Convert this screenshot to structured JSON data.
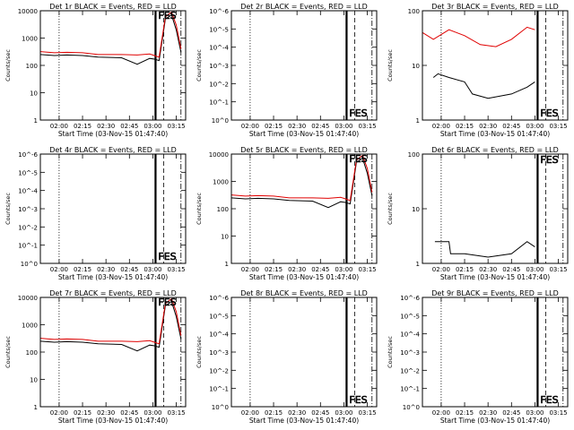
{
  "colors": {
    "events": "#000000",
    "lld": "#e00000",
    "axis": "#000000"
  },
  "chart_data": [
    {
      "type": "line",
      "title": "Det 1r BLACK = Events, RED = LLD",
      "ylabel": "Counts/sec",
      "xlabel": "Start Time (03-Nov-15 01:47:40)",
      "yscale": "log",
      "yticks": [
        "1",
        "10",
        "100",
        "1000",
        "10000"
      ],
      "ylim": [
        1,
        10000
      ],
      "xticks": [
        "02:00",
        "02:15",
        "02:30",
        "02:45",
        "03:00",
        "03:15"
      ],
      "annotations": [
        "FES"
      ],
      "has_data": true,
      "series": [
        {
          "name": "Events",
          "x": [
            "01:48",
            "01:57",
            "02:05",
            "02:15",
            "02:25",
            "02:40",
            "02:50",
            "02:58",
            "03:01",
            "03:04",
            "03:08",
            "03:12",
            "03:15",
            "03:18"
          ],
          "y": [
            250,
            230,
            240,
            230,
            200,
            190,
            110,
            180,
            170,
            150,
            5000,
            7000,
            2000,
            300
          ]
        },
        {
          "name": "LLD",
          "x": [
            "01:48",
            "01:57",
            "02:05",
            "02:15",
            "02:25",
            "02:40",
            "02:50",
            "02:58",
            "03:01",
            "03:04",
            "03:08",
            "03:12",
            "03:15",
            "03:18"
          ],
          "y": [
            320,
            290,
            300,
            290,
            250,
            250,
            240,
            260,
            230,
            200,
            6000,
            9000,
            3000,
            400
          ]
        }
      ]
    },
    {
      "type": "line",
      "title": "Det 2r BLACK = Events, RED = LLD",
      "ylabel": "Counts/sec",
      "xlabel": "Start Time (03-Nov-15 01:47:40)",
      "yscale": "log",
      "yticks": [
        "10^0",
        "10^-1",
        "10^-2",
        "10^-3",
        "10^-4",
        "10^-5",
        "10^-6"
      ],
      "ylim": [
        1,
        1e-06
      ],
      "xticks": [
        "02:00",
        "02:15",
        "02:30",
        "02:45",
        "03:00",
        "03:15"
      ],
      "annotations": [
        "FES"
      ],
      "has_data": false
    },
    {
      "type": "line",
      "title": "Det 3r BLACK = Events, RED = LLD",
      "ylabel": "Counts/sec",
      "xlabel": "Start Time (03-Nov-15 01:47:40)",
      "yscale": "log",
      "yticks": [
        "1",
        "10",
        "100"
      ],
      "ylim": [
        1,
        100
      ],
      "xticks": [
        "02:00",
        "02:15",
        "02:30",
        "02:45",
        "03:00",
        "03:15"
      ],
      "annotations": [
        "FES"
      ],
      "has_data": true,
      "series": [
        {
          "name": "Events",
          "x": [
            "01:55",
            "01:58",
            "02:05",
            "02:15",
            "02:20",
            "02:30",
            "02:45",
            "02:55",
            "03:00"
          ],
          "y": [
            6,
            7,
            6,
            5,
            3,
            2.5,
            3,
            4,
            5
          ]
        },
        {
          "name": "LLD",
          "x": [
            "01:48",
            "01:55",
            "02:05",
            "02:15",
            "02:25",
            "02:35",
            "02:45",
            "02:55",
            "03:00"
          ],
          "y": [
            40,
            30,
            45,
            35,
            24,
            22,
            30,
            50,
            45
          ]
        }
      ]
    },
    {
      "type": "line",
      "title": "Det 4r BLACK = Events, RED = LLD",
      "ylabel": "Counts/sec",
      "xlabel": "Start Time (03-Nov-15 01:47:40)",
      "yscale": "log",
      "yticks": [
        "10^0",
        "10^-1",
        "10^-2",
        "10^-3",
        "10^-4",
        "10^-5",
        "10^-6"
      ],
      "ylim": [
        1,
        1e-06
      ],
      "xticks": [
        "02:00",
        "02:15",
        "02:30",
        "02:45",
        "03:00",
        "03:15"
      ],
      "annotations": [
        "FES"
      ],
      "has_data": false
    },
    {
      "type": "line",
      "title": "Det 5r BLACK = Events, RED = LLD",
      "ylabel": "Counts/sec",
      "xlabel": "Start Time (03-Nov-15 01:47:40)",
      "yscale": "log",
      "yticks": [
        "1",
        "10",
        "100",
        "1000",
        "10000"
      ],
      "ylim": [
        1,
        10000
      ],
      "xticks": [
        "02:00",
        "02:15",
        "02:30",
        "02:45",
        "03:00",
        "03:15"
      ],
      "annotations": [
        "FES"
      ],
      "has_data": true,
      "series": [
        {
          "name": "Events",
          "x": [
            "01:48",
            "01:57",
            "02:05",
            "02:15",
            "02:25",
            "02:40",
            "02:50",
            "02:58",
            "03:01",
            "03:04",
            "03:08",
            "03:12",
            "03:15",
            "03:18"
          ],
          "y": [
            250,
            230,
            240,
            230,
            200,
            190,
            110,
            180,
            170,
            150,
            5000,
            7000,
            2000,
            300
          ]
        },
        {
          "name": "LLD",
          "x": [
            "01:48",
            "01:57",
            "02:05",
            "02:15",
            "02:25",
            "02:40",
            "02:50",
            "02:58",
            "03:01",
            "03:04",
            "03:08",
            "03:12",
            "03:15",
            "03:18"
          ],
          "y": [
            320,
            290,
            300,
            290,
            250,
            250,
            240,
            260,
            230,
            200,
            6000,
            9000,
            3000,
            400
          ]
        }
      ]
    },
    {
      "type": "line",
      "title": "Det 6r BLACK = Events, RED = LLD",
      "ylabel": "Counts/sec",
      "xlabel": "Start Time (03-Nov-15 01:47:40)",
      "yscale": "log",
      "yticks": [
        "1",
        "10",
        "100"
      ],
      "ylim": [
        1,
        100
      ],
      "xticks": [
        "02:00",
        "02:15",
        "02:30",
        "02:45",
        "03:00",
        "03:15"
      ],
      "annotations": [
        "FES"
      ],
      "has_data": true,
      "series": [
        {
          "name": "Events",
          "x": [
            "01:56",
            "02:05",
            "02:06",
            "02:15",
            "02:30",
            "02:45",
            "02:55",
            "03:00"
          ],
          "y": [
            2.5,
            2.5,
            1.5,
            1.5,
            1.3,
            1.5,
            2.5,
            2
          ]
        }
      ]
    },
    {
      "type": "line",
      "title": "Det 7r BLACK = Events, RED = LLD",
      "ylabel": "Counts/sec",
      "xlabel": "Start Time (03-Nov-15 01:47:40)",
      "yscale": "log",
      "yticks": [
        "1",
        "10",
        "100",
        "1000",
        "10000"
      ],
      "ylim": [
        1,
        10000
      ],
      "xticks": [
        "02:00",
        "02:15",
        "02:30",
        "02:45",
        "03:00",
        "03:15"
      ],
      "annotations": [
        "FES"
      ],
      "has_data": true,
      "series": [
        {
          "name": "Events",
          "x": [
            "01:48",
            "01:57",
            "02:05",
            "02:15",
            "02:25",
            "02:40",
            "02:50",
            "02:58",
            "03:01",
            "03:04",
            "03:08",
            "03:12",
            "03:15",
            "03:18"
          ],
          "y": [
            250,
            230,
            240,
            230,
            200,
            190,
            110,
            180,
            170,
            150,
            5000,
            7000,
            2000,
            300
          ]
        },
        {
          "name": "LLD",
          "x": [
            "01:48",
            "01:57",
            "02:05",
            "02:15",
            "02:25",
            "02:40",
            "02:50",
            "02:58",
            "03:01",
            "03:04",
            "03:08",
            "03:12",
            "03:15",
            "03:18"
          ],
          "y": [
            320,
            290,
            300,
            290,
            250,
            250,
            240,
            260,
            230,
            200,
            6000,
            9000,
            3000,
            400
          ]
        }
      ]
    },
    {
      "type": "line",
      "title": "Det 8r BLACK = Events, RED = LLD",
      "ylabel": "Counts/sec",
      "xlabel": "Start Time (03-Nov-15 01:47:40)",
      "yscale": "log",
      "yticks": [
        "10^0",
        "10^-1",
        "10^-2",
        "10^-3",
        "10^-4",
        "10^-5",
        "10^-6"
      ],
      "ylim": [
        1,
        1e-06
      ],
      "xticks": [
        "02:00",
        "02:15",
        "02:30",
        "02:45",
        "03:00",
        "03:15"
      ],
      "annotations": [
        "FES"
      ],
      "has_data": false
    },
    {
      "type": "line",
      "title": "Det 9r BLACK = Events, RED = LLD",
      "ylabel": "Counts/sec",
      "xlabel": "Start Time (03-Nov-15 01:47:40)",
      "yscale": "log",
      "yticks": [
        "10^0",
        "10^-1",
        "10^-2",
        "10^-3",
        "10^-4",
        "10^-5",
        "10^-6"
      ],
      "ylim": [
        1,
        1e-06
      ],
      "xticks": [
        "02:00",
        "02:15",
        "02:30",
        "02:45",
        "03:00",
        "03:15"
      ],
      "annotations": [
        "FES"
      ],
      "has_data": false
    }
  ]
}
